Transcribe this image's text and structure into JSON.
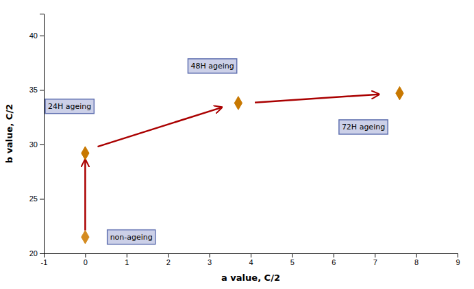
{
  "chart_data": {
    "type": "scatter",
    "xlabel": "a value, C/2",
    "ylabel": "b value, C/2",
    "x": [
      0.0,
      0.0,
      3.7,
      7.6
    ],
    "values": [
      21.5,
      29.2,
      33.8,
      34.7
    ],
    "colors": [
      "#D48B20",
      "#C87800",
      "#C87800",
      "#C87800"
    ],
    "marker": "diamond",
    "arrows": {
      "color": "#aa0000",
      "x1": [
        0.0,
        0.3,
        4.1
      ],
      "y1": [
        22.1,
        29.8,
        33.85
      ],
      "x2": [
        0.0,
        3.3,
        7.1
      ],
      "y2": [
        28.6,
        33.4,
        34.6
      ]
    },
    "annotations": [
      {
        "text": "non-ageing",
        "x": 0.6,
        "y": 21.5
      },
      {
        "text": "24H ageing",
        "x": -0.9,
        "y": 33.5
      },
      {
        "text": "48H ageing",
        "x": 2.55,
        "y": 37.2
      },
      {
        "text": "72H ageing",
        "x": 6.2,
        "y": 31.6
      }
    ],
    "xlim": [
      -1,
      9
    ],
    "ylim": [
      20,
      42
    ],
    "xticks": [
      -1,
      0,
      1,
      2,
      3,
      4,
      5,
      6,
      7,
      8,
      9
    ],
    "yticks": [
      20,
      25,
      30,
      35,
      40
    ],
    "grid": false
  }
}
